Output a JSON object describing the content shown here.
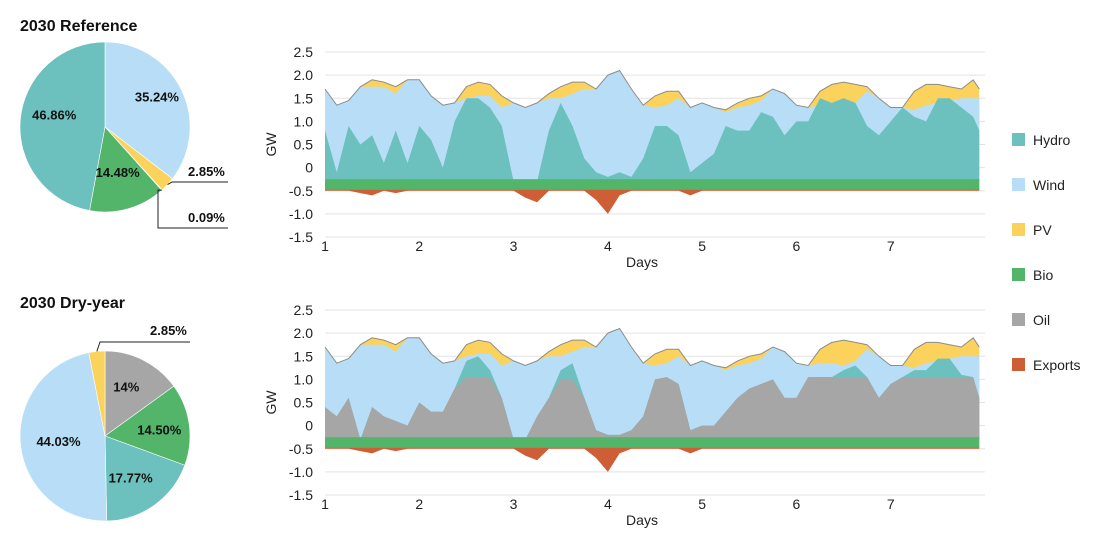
{
  "colors": {
    "Hydro": "#6cc1bf",
    "Wind": "#b7def6",
    "PV": "#fbd25b",
    "Bio": "#52b56a",
    "Oil": "#a6a6a6",
    "Exports": "#cd5e35"
  },
  "legend": [
    "Hydro",
    "Wind",
    "PV",
    "Bio",
    "Oil",
    "Exports"
  ],
  "chart_data": [
    {
      "type": "pie",
      "title": "2030 Reference",
      "slices": [
        {
          "name": "Wind",
          "value": 35.24,
          "label": "35.24%"
        },
        {
          "name": "PV",
          "value": 2.85,
          "label": "2.85%"
        },
        {
          "name": "Oil",
          "value": 0.09,
          "label": "0.09%"
        },
        {
          "name": "Bio",
          "value": 14.48,
          "label": "14.48%"
        },
        {
          "name": "Hydro",
          "value": 46.86,
          "label": "46.86%"
        }
      ]
    },
    {
      "type": "area",
      "xlabel": "Days",
      "ylabel": "GW",
      "xlim": [
        1,
        8
      ],
      "ylim": [
        -1.5,
        2.5
      ],
      "xticks": [
        "1",
        "2",
        "3",
        "4",
        "5",
        "6",
        "7"
      ],
      "yticks": [
        "2.5",
        "2.0",
        "1.5",
        "1.0",
        "0.5",
        "0",
        "-0.5",
        "-1.0",
        "-1.5"
      ],
      "grid": true,
      "x": [
        1.0,
        1.125,
        1.25,
        1.375,
        1.5,
        1.625,
        1.75,
        1.875,
        2.0,
        2.125,
        2.25,
        2.375,
        2.5,
        2.625,
        2.75,
        2.875,
        3.0,
        3.125,
        3.25,
        3.375,
        3.5,
        3.625,
        3.75,
        3.875,
        4.0,
        4.125,
        4.25,
        4.375,
        4.5,
        4.625,
        4.75,
        4.875,
        5.0,
        5.125,
        5.25,
        5.375,
        5.5,
        5.625,
        5.75,
        5.875,
        6.0,
        6.125,
        6.25,
        6.375,
        6.5,
        6.625,
        6.75,
        6.875,
        7.0,
        7.125,
        7.25,
        7.375,
        7.5,
        7.625,
        7.75,
        7.875,
        7.94
      ],
      "series": [
        {
          "name": "Bio",
          "values": [
            -0.3,
            -0.3,
            -0.3,
            -0.3,
            -0.3,
            -0.3,
            -0.3,
            -0.3,
            -0.3,
            -0.3,
            -0.3,
            -0.3,
            -0.3,
            -0.3,
            -0.3,
            -0.3,
            -0.3,
            -0.3,
            -0.3,
            -0.3,
            -0.3,
            -0.3,
            -0.3,
            -0.3,
            -0.3,
            -0.3,
            -0.3,
            -0.3,
            -0.3,
            -0.3,
            -0.3,
            -0.3,
            -0.3,
            -0.3,
            -0.3,
            -0.3,
            -0.3,
            -0.3,
            -0.3,
            -0.3,
            -0.3,
            -0.3,
            -0.3,
            -0.3,
            -0.3,
            -0.3,
            -0.3,
            -0.3,
            -0.3,
            -0.3,
            -0.3,
            -0.3,
            -0.3,
            -0.3,
            -0.3,
            -0.3,
            -0.3
          ]
        },
        {
          "name": "Hydro",
          "values": [
            0.8,
            -0.1,
            0.9,
            0.5,
            0.7,
            0.1,
            0.8,
            0.1,
            0.9,
            0.6,
            0.0,
            1.0,
            1.5,
            1.5,
            1.3,
            0.9,
            -0.3,
            -0.3,
            -0.3,
            0.8,
            1.4,
            0.9,
            0.2,
            -0.1,
            -0.2,
            -0.1,
            -0.2,
            0.2,
            0.9,
            0.9,
            0.7,
            -0.1,
            0.1,
            0.3,
            0.9,
            0.8,
            0.8,
            1.2,
            1.1,
            0.7,
            1.0,
            1.0,
            1.5,
            1.4,
            1.5,
            1.4,
            0.9,
            0.7,
            1.0,
            1.3,
            1.1,
            1.0,
            1.5,
            1.5,
            1.3,
            1.1,
            0.8
          ]
        },
        {
          "name": "Wind",
          "values": [
            1.7,
            1.35,
            1.45,
            1.75,
            1.75,
            1.75,
            1.6,
            1.9,
            1.9,
            1.55,
            1.35,
            1.4,
            1.5,
            1.55,
            1.55,
            1.3,
            1.4,
            1.3,
            1.4,
            1.5,
            1.5,
            1.6,
            1.7,
            1.7,
            2.0,
            2.1,
            1.7,
            1.35,
            1.3,
            1.35,
            1.5,
            1.3,
            1.4,
            1.3,
            1.2,
            1.3,
            1.35,
            1.45,
            1.7,
            1.6,
            1.35,
            1.3,
            1.35,
            1.35,
            1.3,
            1.4,
            1.65,
            1.5,
            1.3,
            1.3,
            1.25,
            1.35,
            1.4,
            1.45,
            1.5,
            1.5,
            1.5
          ]
        },
        {
          "name": "PV",
          "values": [
            1.7,
            1.35,
            1.45,
            1.75,
            1.9,
            1.85,
            1.75,
            1.9,
            1.9,
            1.55,
            1.35,
            1.4,
            1.75,
            1.85,
            1.8,
            1.55,
            1.4,
            1.3,
            1.4,
            1.6,
            1.75,
            1.85,
            1.85,
            1.7,
            2.0,
            2.1,
            1.7,
            1.35,
            1.55,
            1.65,
            1.65,
            1.3,
            1.4,
            1.3,
            1.25,
            1.4,
            1.5,
            1.55,
            1.7,
            1.6,
            1.35,
            1.3,
            1.65,
            1.8,
            1.85,
            1.8,
            1.75,
            1.5,
            1.3,
            1.3,
            1.65,
            1.8,
            1.8,
            1.75,
            1.7,
            1.9,
            1.7
          ]
        },
        {
          "name": "Exports",
          "values": [
            -0.5,
            -0.5,
            -0.5,
            -0.55,
            -0.6,
            -0.5,
            -0.55,
            -0.5,
            -0.5,
            -0.5,
            -0.5,
            -0.5,
            -0.5,
            -0.5,
            -0.5,
            -0.5,
            -0.5,
            -0.65,
            -0.75,
            -0.5,
            -0.5,
            -0.5,
            -0.5,
            -0.7,
            -1.0,
            -0.6,
            -0.5,
            -0.5,
            -0.5,
            -0.5,
            -0.5,
            -0.6,
            -0.5,
            -0.5,
            -0.5,
            -0.5,
            -0.5,
            -0.5,
            -0.5,
            -0.5,
            -0.5,
            -0.5,
            -0.5,
            -0.5,
            -0.5,
            -0.5,
            -0.5,
            -0.5,
            -0.5,
            -0.5,
            -0.5,
            -0.5,
            -0.5,
            -0.5,
            -0.5,
            -0.5,
            -0.5
          ]
        }
      ]
    },
    {
      "type": "pie",
      "title": "2030 Dry-year",
      "slices": [
        {
          "name": "Oil",
          "value": 14.0,
          "label": "14%"
        },
        {
          "name": "Bio",
          "value": 14.5,
          "label": "14.50%"
        },
        {
          "name": "Hydro",
          "value": 17.77,
          "label": "17.77%"
        },
        {
          "name": "Wind",
          "value": 44.03,
          "label": "44.03%"
        },
        {
          "name": "PV",
          "value": 2.85,
          "label": "2.85%"
        }
      ]
    },
    {
      "type": "area",
      "xlabel": "Days",
      "ylabel": "GW",
      "xlim": [
        1,
        8
      ],
      "ylim": [
        -1.5,
        2.5
      ],
      "xticks": [
        "1",
        "2",
        "3",
        "4",
        "5",
        "6",
        "7"
      ],
      "yticks": [
        "2.5",
        "2.0",
        "1.5",
        "1.0",
        "0.5",
        "0",
        "-0.5",
        "-1.0",
        "-1.5"
      ],
      "grid": true,
      "x": [
        1.0,
        1.125,
        1.25,
        1.375,
        1.5,
        1.625,
        1.75,
        1.875,
        2.0,
        2.125,
        2.25,
        2.375,
        2.5,
        2.625,
        2.75,
        2.875,
        3.0,
        3.125,
        3.25,
        3.375,
        3.5,
        3.625,
        3.75,
        3.875,
        4.0,
        4.125,
        4.25,
        4.375,
        4.5,
        4.625,
        4.75,
        4.875,
        5.0,
        5.125,
        5.25,
        5.375,
        5.5,
        5.625,
        5.75,
        5.875,
        6.0,
        6.125,
        6.25,
        6.375,
        6.5,
        6.625,
        6.75,
        6.875,
        7.0,
        7.125,
        7.25,
        7.375,
        7.5,
        7.625,
        7.75,
        7.875,
        7.94
      ],
      "series": [
        {
          "name": "Bio",
          "values": [
            -0.3,
            -0.3,
            -0.3,
            -0.3,
            -0.3,
            -0.3,
            -0.3,
            -0.3,
            -0.3,
            -0.3,
            -0.3,
            -0.3,
            -0.3,
            -0.3,
            -0.3,
            -0.3,
            -0.3,
            -0.3,
            -0.3,
            -0.3,
            -0.3,
            -0.3,
            -0.3,
            -0.3,
            -0.3,
            -0.3,
            -0.3,
            -0.3,
            -0.3,
            -0.3,
            -0.3,
            -0.3,
            -0.3,
            -0.3,
            -0.3,
            -0.3,
            -0.3,
            -0.3,
            -0.3,
            -0.3,
            -0.3,
            -0.3,
            -0.3,
            -0.3,
            -0.3,
            -0.3,
            -0.3,
            -0.3,
            -0.3,
            -0.3,
            -0.3,
            -0.3,
            -0.3,
            -0.3,
            -0.3,
            -0.3,
            -0.3
          ]
        },
        {
          "name": "Oil",
          "values": [
            0.4,
            0.2,
            0.6,
            -0.3,
            0.4,
            0.2,
            0.1,
            0.0,
            0.5,
            0.3,
            0.3,
            0.8,
            1.05,
            1.05,
            1.05,
            0.6,
            -0.3,
            -0.3,
            0.2,
            0.6,
            1.0,
            1.0,
            0.6,
            -0.1,
            -0.2,
            -0.2,
            -0.1,
            0.2,
            1.0,
            1.05,
            0.9,
            -0.1,
            0.0,
            0.0,
            0.3,
            0.6,
            0.8,
            0.9,
            1.0,
            0.6,
            0.6,
            1.05,
            1.05,
            1.05,
            1.05,
            1.05,
            1.05,
            0.6,
            0.9,
            1.05,
            1.05,
            1.05,
            1.05,
            1.05,
            1.05,
            1.05,
            0.6
          ]
        },
        {
          "name": "Hydro",
          "values": [
            0.4,
            0.2,
            0.6,
            -0.3,
            0.4,
            0.2,
            0.1,
            0.0,
            0.5,
            0.3,
            0.3,
            0.8,
            1.4,
            1.5,
            1.2,
            0.6,
            -0.3,
            -0.3,
            0.2,
            0.6,
            1.2,
            1.35,
            0.6,
            -0.1,
            -0.2,
            -0.2,
            -0.1,
            0.2,
            1.0,
            1.05,
            0.9,
            -0.1,
            0.0,
            0.0,
            0.3,
            0.6,
            0.8,
            0.9,
            1.0,
            0.6,
            0.6,
            1.05,
            1.05,
            1.05,
            1.2,
            1.3,
            1.05,
            0.6,
            0.9,
            1.05,
            1.2,
            1.2,
            1.45,
            1.45,
            1.1,
            1.05,
            0.6
          ]
        },
        {
          "name": "Wind",
          "values": [
            1.7,
            1.35,
            1.45,
            1.75,
            1.75,
            1.75,
            1.6,
            1.9,
            1.9,
            1.55,
            1.35,
            1.4,
            1.5,
            1.55,
            1.55,
            1.3,
            1.4,
            1.3,
            1.4,
            1.5,
            1.5,
            1.6,
            1.7,
            1.7,
            2.0,
            2.1,
            1.7,
            1.35,
            1.3,
            1.35,
            1.5,
            1.3,
            1.4,
            1.3,
            1.2,
            1.3,
            1.35,
            1.45,
            1.7,
            1.6,
            1.35,
            1.3,
            1.35,
            1.35,
            1.3,
            1.4,
            1.65,
            1.5,
            1.3,
            1.3,
            1.25,
            1.35,
            1.4,
            1.45,
            1.5,
            1.5,
            1.5
          ]
        },
        {
          "name": "PV",
          "values": [
            1.7,
            1.35,
            1.45,
            1.75,
            1.9,
            1.85,
            1.75,
            1.9,
            1.9,
            1.55,
            1.35,
            1.4,
            1.75,
            1.85,
            1.8,
            1.55,
            1.4,
            1.3,
            1.4,
            1.6,
            1.75,
            1.85,
            1.85,
            1.7,
            2.0,
            2.1,
            1.7,
            1.35,
            1.55,
            1.65,
            1.65,
            1.3,
            1.4,
            1.3,
            1.25,
            1.4,
            1.5,
            1.55,
            1.7,
            1.6,
            1.35,
            1.3,
            1.65,
            1.8,
            1.85,
            1.8,
            1.75,
            1.5,
            1.3,
            1.3,
            1.65,
            1.8,
            1.8,
            1.75,
            1.7,
            1.9,
            1.7
          ]
        },
        {
          "name": "Exports",
          "values": [
            -0.5,
            -0.5,
            -0.5,
            -0.55,
            -0.6,
            -0.5,
            -0.55,
            -0.5,
            -0.5,
            -0.5,
            -0.5,
            -0.5,
            -0.5,
            -0.5,
            -0.5,
            -0.5,
            -0.5,
            -0.65,
            -0.75,
            -0.5,
            -0.5,
            -0.5,
            -0.5,
            -0.7,
            -1.0,
            -0.6,
            -0.5,
            -0.5,
            -0.5,
            -0.5,
            -0.5,
            -0.6,
            -0.5,
            -0.5,
            -0.5,
            -0.5,
            -0.5,
            -0.5,
            -0.5,
            -0.5,
            -0.5,
            -0.5,
            -0.5,
            -0.5,
            -0.5,
            -0.5,
            -0.5,
            -0.5,
            -0.5,
            -0.5,
            -0.5,
            -0.5,
            -0.5,
            -0.5,
            -0.5,
            -0.5,
            -0.5
          ]
        }
      ]
    }
  ]
}
